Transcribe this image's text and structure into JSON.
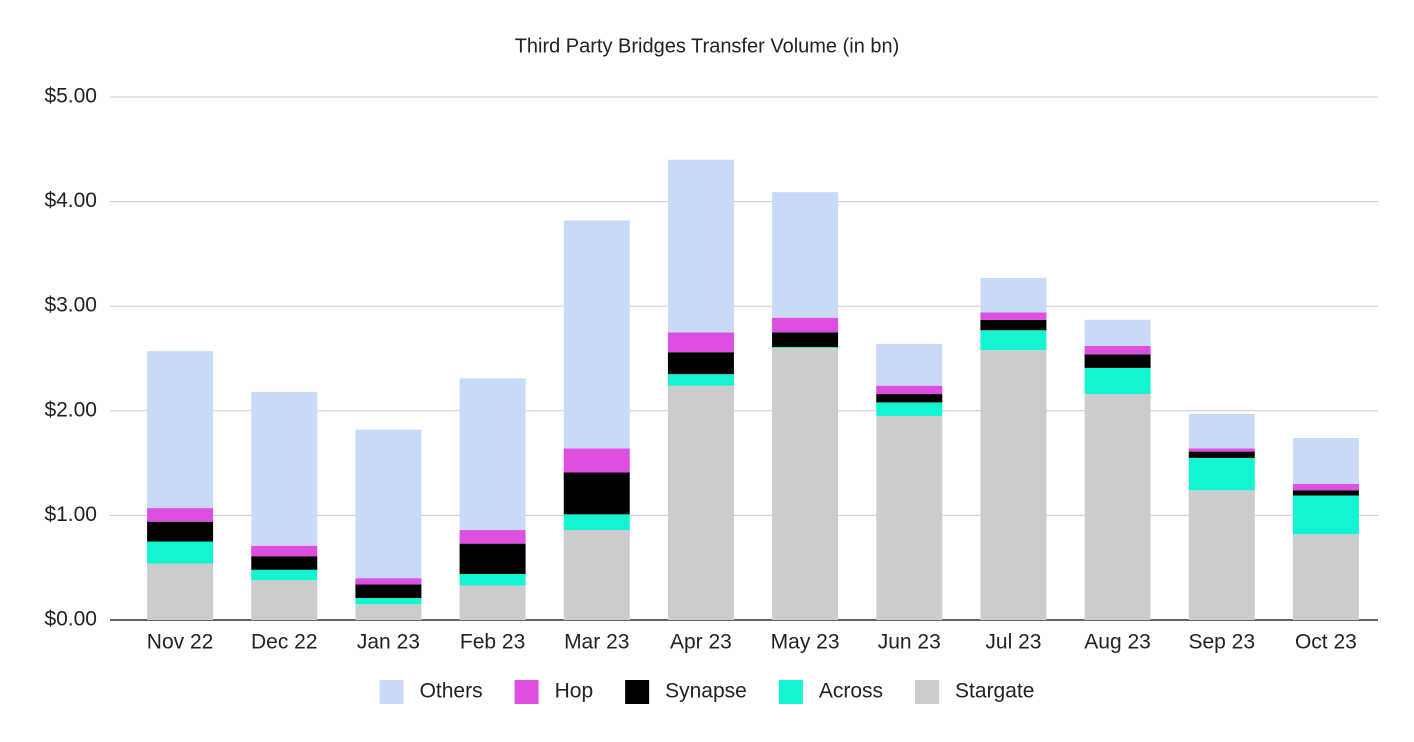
{
  "chart_data": {
    "type": "stacked_bar",
    "title": "Third Party Bridges Transfer Volume (in bn)",
    "categories": [
      "Nov 22",
      "Dec 22",
      "Jan 23",
      "Feb 23",
      "Mar 23",
      "Apr 23",
      "May 23",
      "Jun 23",
      "Jul 23",
      "Aug 23",
      "Sep 23",
      "Oct 23"
    ],
    "series": [
      {
        "name": "Others",
        "color": "#c9daf8",
        "values": [
          1.5,
          1.47,
          1.42,
          1.45,
          2.18,
          1.65,
          1.2,
          0.4,
          0.33,
          0.25,
          0.33,
          0.44
        ]
      },
      {
        "name": "Hop",
        "color": "#dc4fe0",
        "values": [
          0.13,
          0.1,
          0.06,
          0.13,
          0.23,
          0.19,
          0.14,
          0.08,
          0.07,
          0.08,
          0.03,
          0.06
        ]
      },
      {
        "name": "Synapse",
        "color": "#000000",
        "values": [
          0.19,
          0.13,
          0.13,
          0.29,
          0.4,
          0.21,
          0.14,
          0.08,
          0.1,
          0.13,
          0.06,
          0.05
        ]
      },
      {
        "name": "Across",
        "color": "#13f5d2",
        "values": [
          0.21,
          0.1,
          0.06,
          0.11,
          0.15,
          0.11,
          0.01,
          0.13,
          0.19,
          0.25,
          0.31,
          0.37
        ]
      },
      {
        "name": "Stargate",
        "color": "#cccccc",
        "values": [
          0.54,
          0.38,
          0.15,
          0.33,
          0.86,
          2.24,
          2.6,
          1.95,
          2.58,
          2.16,
          1.24,
          0.82
        ]
      }
    ],
    "ylim": [
      0,
      5
    ],
    "yticks": [
      {
        "value": 0,
        "label": "$0.00"
      },
      {
        "value": 1,
        "label": "$1.00"
      },
      {
        "value": 2,
        "label": "$2.00"
      },
      {
        "value": 3,
        "label": "$3.00"
      },
      {
        "value": 4,
        "label": "$4.00"
      },
      {
        "value": 5,
        "label": "$5.00"
      }
    ],
    "grid": true,
    "legend": "bottom"
  }
}
